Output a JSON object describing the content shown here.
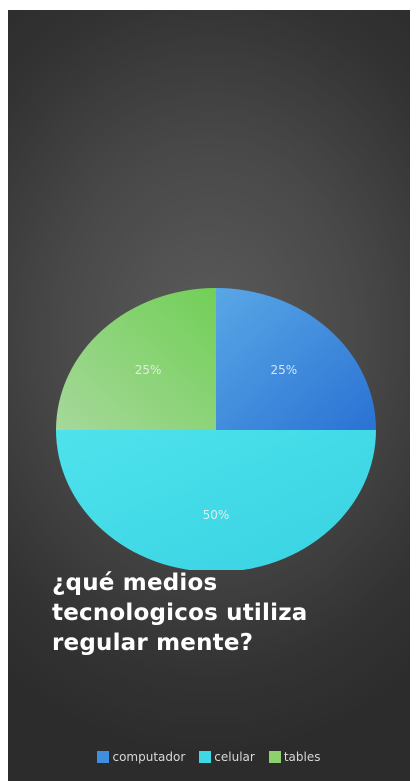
{
  "chart_data": {
    "type": "pie",
    "title": "¿qué medios tecnologicos utiliza regular mente?",
    "categories": [
      "computador",
      "celular",
      "tables"
    ],
    "values": [
      25,
      50,
      25
    ],
    "data_labels": [
      "25%",
      "50%",
      "25%"
    ],
    "colors": [
      "#3f8fdf",
      "#3fd8e6",
      "#8ed06e"
    ],
    "legend_position": "bottom"
  }
}
